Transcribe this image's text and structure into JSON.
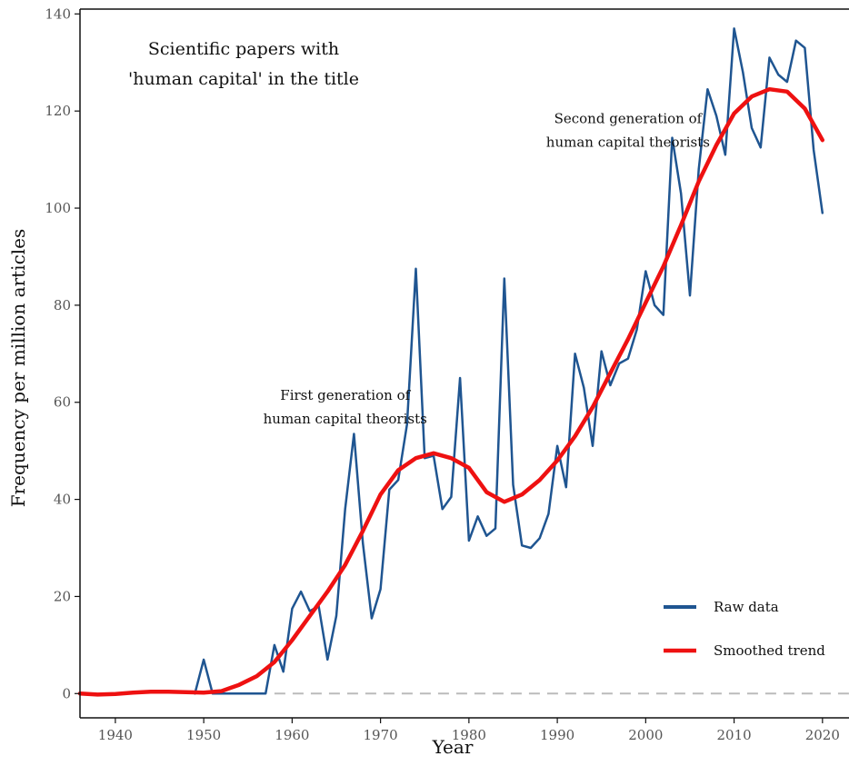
{
  "chart_data": {
    "type": "line",
    "title_lines": [
      "Scientific papers with",
      "'human capital' in the title"
    ],
    "xlabel": "Year",
    "ylabel": "Frequency per million articles",
    "xlim": [
      1936,
      2023
    ],
    "ylim": [
      -5,
      141
    ],
    "x_ticks": [
      1940,
      1950,
      1960,
      1970,
      1980,
      1990,
      2000,
      2010,
      2020
    ],
    "y_ticks": [
      0,
      20,
      40,
      60,
      80,
      100,
      120,
      140
    ],
    "grid": false,
    "legend_position": "bottom-right",
    "zero_reference_line": true,
    "annotations": [
      {
        "lines": [
          "First generation of",
          "human capital theorists"
        ],
        "x": 1966,
        "y": 60.5
      },
      {
        "lines": [
          "Second generation of",
          "human capital theorists"
        ],
        "x": 1998,
        "y": 117.5
      }
    ],
    "series": [
      {
        "name": "Raw data",
        "color": "#1f5591",
        "x": [
          1949,
          1950,
          1951,
          1952,
          1953,
          1954,
          1955,
          1956,
          1957,
          1958,
          1959,
          1960,
          1961,
          1962,
          1963,
          1964,
          1965,
          1966,
          1967,
          1968,
          1969,
          1970,
          1971,
          1972,
          1973,
          1974,
          1975,
          1976,
          1977,
          1978,
          1979,
          1980,
          1981,
          1982,
          1983,
          1984,
          1985,
          1986,
          1987,
          1988,
          1989,
          1990,
          1991,
          1992,
          1993,
          1994,
          1995,
          1996,
          1997,
          1998,
          1999,
          2000,
          2001,
          2002,
          2003,
          2004,
          2005,
          2006,
          2007,
          2008,
          2009,
          2010,
          2011,
          2012,
          2013,
          2014,
          2015,
          2016,
          2017,
          2018,
          2019,
          2020
        ],
        "values": [
          0,
          7,
          0,
          0,
          0,
          0,
          0,
          0,
          0,
          10,
          4.5,
          17.5,
          21,
          17,
          18,
          7,
          16,
          38,
          53.5,
          31,
          15.5,
          21.5,
          42,
          44,
          55.5,
          87.5,
          48.5,
          49,
          38,
          40.5,
          65,
          31.5,
          36.5,
          32.5,
          34,
          85.5,
          43,
          30.5,
          30,
          32,
          37,
          51,
          42.5,
          70,
          63,
          51,
          70.5,
          63.5,
          68,
          69,
          75,
          87,
          80,
          78,
          114.5,
          103,
          82,
          108,
          124.5,
          119,
          111,
          137,
          128,
          116.5,
          112.5,
          131,
          127.5,
          126,
          134.5,
          133,
          112,
          99
        ]
      },
      {
        "name": "Smoothed trend",
        "color": "#ee1111",
        "x": [
          1936,
          1938,
          1940,
          1942,
          1944,
          1946,
          1948,
          1950,
          1952,
          1954,
          1956,
          1958,
          1960,
          1962,
          1964,
          1966,
          1968,
          1970,
          1972,
          1974,
          1976,
          1978,
          1980,
          1982,
          1984,
          1986,
          1988,
          1990,
          1992,
          1994,
          1996,
          1998,
          2000,
          2002,
          2004,
          2006,
          2008,
          2010,
          2012,
          2014,
          2016,
          2018,
          2020
        ],
        "values": [
          0,
          -0.2,
          -0.1,
          0.2,
          0.4,
          0.4,
          0.3,
          0.2,
          0.5,
          1.8,
          3.6,
          6.5,
          11,
          16,
          21,
          26.5,
          33.5,
          41,
          46,
          48.5,
          49.5,
          48.5,
          46.5,
          41.5,
          39.5,
          41,
          44,
          48,
          53,
          59,
          66,
          73,
          80.5,
          88,
          96.5,
          105.5,
          113,
          119.5,
          123,
          124.5,
          124,
          120.5,
          114
        ]
      }
    ]
  }
}
